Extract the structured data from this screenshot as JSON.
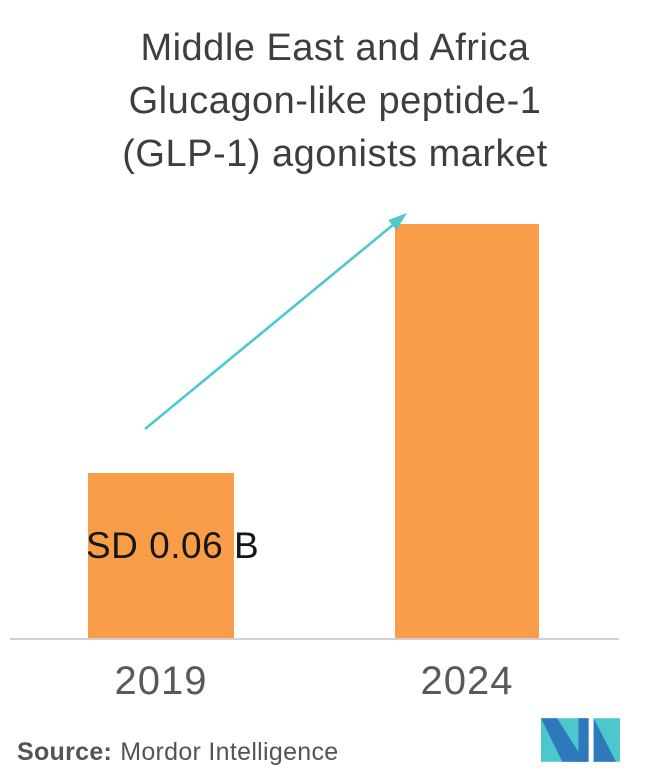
{
  "chart_data": {
    "type": "bar",
    "title": "Middle East and Africa Glucagon-like peptide-1 (GLP-1) agonists market",
    "title_lines": [
      "Middle East and Africa",
      "Glucagon-like peptide-1",
      "(GLP-1) agonists market"
    ],
    "categories": [
      "2019",
      "2024"
    ],
    "values": [
      0.06,
      0.15
    ],
    "values_estimated": [
      false,
      true
    ],
    "bar_labels": [
      "SD 0.06 B",
      ""
    ],
    "bar_color": "#FA9D49",
    "arrow_color": "#4EC8CE",
    "axis_color": "#D3D1CF",
    "grid": false,
    "legend": false,
    "xlabel": "",
    "ylabel": ""
  },
  "source": {
    "prefix": "Source:",
    "text": "Mordor Intelligence"
  },
  "logo": {
    "blue": "#2E79BC",
    "teal": "#4BC7CD"
  }
}
